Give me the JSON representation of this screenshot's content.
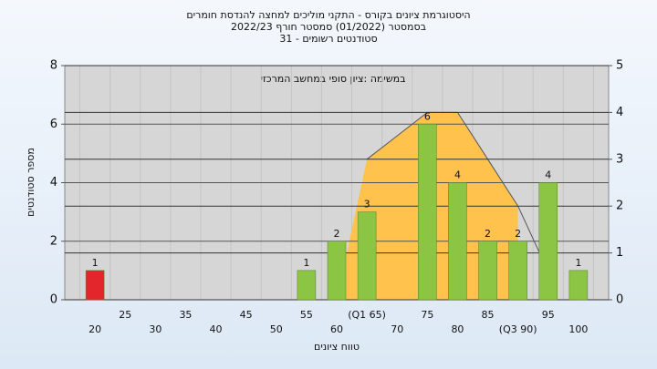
{
  "chart_data": {
    "type": "bar",
    "title": [
      "היסטוגרמת ציונים בקורס - התקני מוליכים למחצה להנדסת חומרים",
      "בסמסטר  (01/2022)  סמסטר חורף 2022/23",
      "סטודנטים רשומים - 31"
    ],
    "annotation": "במשימה :ציון סופי במחשב המרכזי",
    "x_label": "טווח ציונים",
    "y_label": "מספר סטודנטים",
    "categories": [
      "20",
      "25",
      "30",
      "35",
      "40",
      "45",
      "50",
      "55",
      "60",
      "(Q1 65)",
      "70",
      "75",
      "80",
      "85",
      "(Q3 90)",
      "95",
      "100"
    ],
    "values": [
      1,
      0,
      0,
      0,
      0,
      0,
      0,
      1,
      2,
      3,
      0,
      6,
      4,
      2,
      2,
      4,
      1
    ],
    "colors": [
      "#e3262b",
      "#8cc443",
      "#8cc443",
      "#8cc443",
      "#8cc443",
      "#8cc443",
      "#8cc443",
      "#8cc443",
      "#8cc443",
      "#8cc443",
      "#8cc443",
      "#8cc443",
      "#8cc443",
      "#8cc443",
      "#8cc443",
      "#8cc443",
      "#8cc443"
    ],
    "line_series": [
      {
        "type": "area",
        "axis": "y2",
        "color": "#ffc34d",
        "values": [
          null,
          null,
          null,
          null,
          null,
          null,
          null,
          null,
          0,
          3,
          3.5,
          4,
          4,
          3,
          2,
          null,
          null
        ]
      },
      {
        "type": "line",
        "axis": "y2",
        "color": "#555555",
        "values": [
          null,
          null,
          null,
          null,
          null,
          null,
          null,
          null,
          null,
          3,
          3.5,
          4,
          4,
          3,
          2,
          0.6,
          null
        ]
      }
    ],
    "ylim": [
      0,
      8
    ],
    "yticks": [
      0,
      2,
      4,
      6,
      8
    ],
    "y2lim": [
      0,
      5
    ],
    "y2ticks": [
      0,
      1,
      2,
      3,
      4,
      5
    ],
    "grid": true
  }
}
